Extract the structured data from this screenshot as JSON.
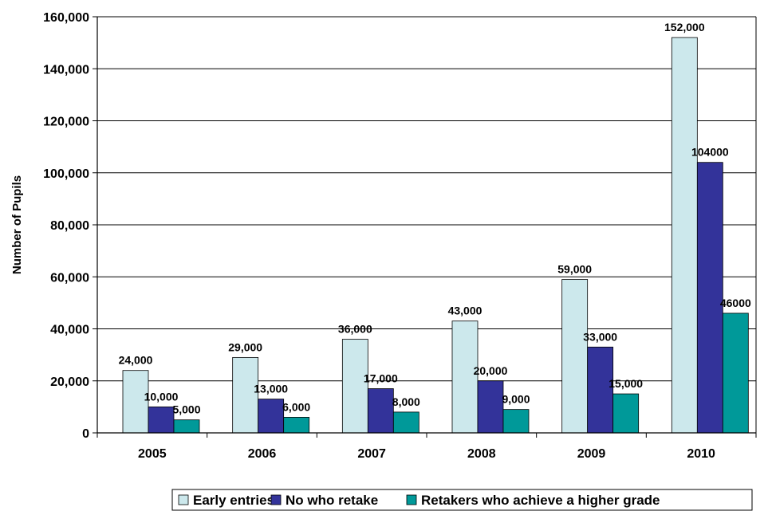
{
  "chart_data": {
    "type": "bar",
    "title": "",
    "xlabel": "",
    "ylabel": "Number of Pupils",
    "categories": [
      "2005",
      "2006",
      "2007",
      "2008",
      "2009",
      "2010"
    ],
    "ylim": [
      0,
      160000
    ],
    "yticks": [
      0,
      20000,
      40000,
      60000,
      80000,
      100000,
      120000,
      140000,
      160000
    ],
    "ytick_labels": [
      "0",
      "20,000",
      "40,000",
      "60,000",
      "80,000",
      "100,000",
      "120,000",
      "140,000",
      "160,000"
    ],
    "grid": true,
    "legend_position": "bottom",
    "series": [
      {
        "name": "Early entries",
        "color": "#cce8ec",
        "values": [
          24000,
          29000,
          36000,
          43000,
          59000,
          152000
        ],
        "labels": [
          "24,000",
          "29,000",
          "36,000",
          "43,000",
          "59,000",
          "152,000"
        ]
      },
      {
        "name": "No who retake",
        "color": "#33339a",
        "values": [
          10000,
          13000,
          17000,
          20000,
          33000,
          104000
        ],
        "labels": [
          "10,000",
          "13,000",
          "17,000",
          "20,000",
          "33,000",
          "104000"
        ]
      },
      {
        "name": "Retakers who achieve a higher grade",
        "color": "#009999",
        "values": [
          5000,
          6000,
          8000,
          9000,
          15000,
          46000
        ],
        "labels": [
          "5,000",
          "6,000",
          "8,000",
          "9,000",
          "15,000",
          "46000"
        ]
      }
    ]
  }
}
